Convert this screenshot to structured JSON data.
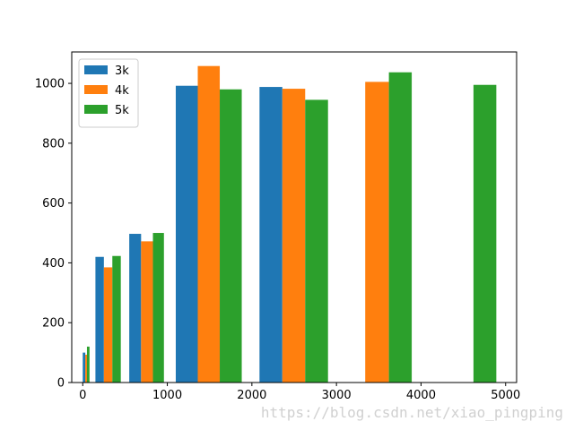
{
  "chart_data": {
    "type": "bar",
    "title": "",
    "xlabel": "",
    "ylabel": "",
    "xlim": [
      -130,
      5130
    ],
    "ylim": [
      0,
      1105
    ],
    "grid": false,
    "legend_position": "top-left",
    "x_ticks": [
      0,
      1000,
      2000,
      3000,
      4000,
      5000
    ],
    "y_ticks": [
      0,
      200,
      400,
      600,
      800,
      1000
    ],
    "series": [
      {
        "name": "3k",
        "color": "#1f77b4",
        "bars": [
          {
            "start": 0,
            "end": 30,
            "value": 100
          },
          {
            "start": 150,
            "end": 250,
            "value": 420
          },
          {
            "start": 550,
            "end": 690,
            "value": 497
          },
          {
            "start": 1100,
            "end": 1360,
            "value": 992
          },
          {
            "start": 2090,
            "end": 2360,
            "value": 988
          }
        ]
      },
      {
        "name": "4k",
        "color": "#ff7f0e",
        "bars": [
          {
            "start": 30,
            "end": 50,
            "value": 93
          },
          {
            "start": 250,
            "end": 350,
            "value": 385
          },
          {
            "start": 690,
            "end": 830,
            "value": 472
          },
          {
            "start": 1360,
            "end": 1620,
            "value": 1058
          },
          {
            "start": 2360,
            "end": 2630,
            "value": 982
          },
          {
            "start": 3340,
            "end": 3620,
            "value": 1005
          }
        ]
      },
      {
        "name": "5k",
        "color": "#2ca02c",
        "bars": [
          {
            "start": 50,
            "end": 80,
            "value": 120
          },
          {
            "start": 350,
            "end": 450,
            "value": 423
          },
          {
            "start": 830,
            "end": 960,
            "value": 500
          },
          {
            "start": 1620,
            "end": 1880,
            "value": 980
          },
          {
            "start": 2630,
            "end": 2900,
            "value": 945
          },
          {
            "start": 3620,
            "end": 3890,
            "value": 1037
          },
          {
            "start": 4620,
            "end": 4890,
            "value": 995
          }
        ]
      }
    ]
  },
  "watermark": "https://blog.csdn.net/xiao_pingping"
}
